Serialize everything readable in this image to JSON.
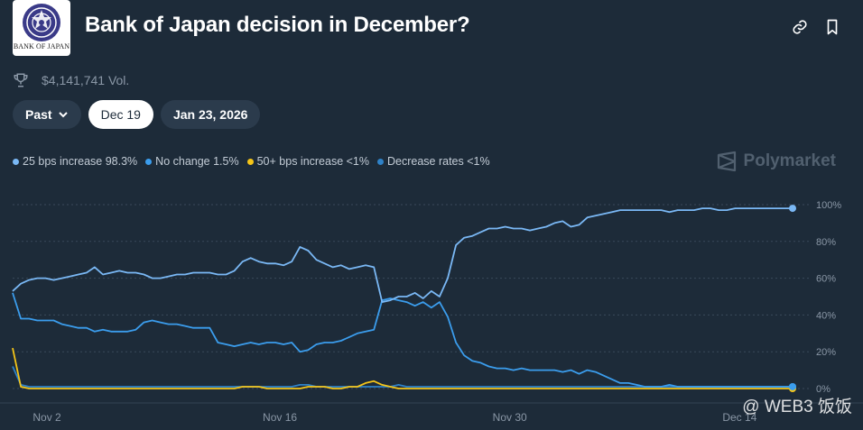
{
  "header": {
    "logo_text": "BANK OF JAPAN",
    "title": "Bank of Japan decision in December?",
    "volume": "$4,141,741 Vol."
  },
  "date_tabs": {
    "past_label": "Past",
    "dec19_label": "Dec 19",
    "jan23_label": "Jan 23, 2026"
  },
  "legend": [
    {
      "label": "25 bps increase 98.3%",
      "color": "#7ab8f5"
    },
    {
      "label": "No change 1.5%",
      "color": "#3b9ded"
    },
    {
      "label": "50+ bps increase <1%",
      "color": "#f5c518"
    },
    {
      "label": "Decrease rates <1%",
      "color": "#2f82c8"
    }
  ],
  "brand": "Polymarket",
  "watermark": "@ WEB3 饭饭",
  "chart_data": {
    "type": "line",
    "x_ticks": [
      "Nov 2",
      "Nov 16",
      "Nov 30",
      "Dec 14"
    ],
    "y_ticks": [
      "0%",
      "20%",
      "40%",
      "60%",
      "80%",
      "100%"
    ],
    "ylim": [
      0,
      100
    ],
    "grid": true,
    "legend_position": "top-left",
    "series": [
      {
        "name": "25 bps increase",
        "color": "#7ab8f5",
        "x": [
          0,
          0.5,
          1,
          1.5,
          2,
          2.5,
          3,
          3.5,
          4,
          4.5,
          5,
          5.5,
          6,
          6.5,
          7,
          7.5,
          8,
          8.5,
          9,
          9.5,
          10,
          10.5,
          11,
          11.5,
          12,
          12.5,
          13,
          13.5,
          14,
          14.5,
          15,
          15.5,
          16,
          16.5,
          17,
          17.5,
          18,
          18.5,
          19,
          19.5,
          20,
          20.5,
          21,
          21.5,
          22,
          22.5,
          23,
          23.5,
          24,
          24.5,
          25,
          25.5,
          26,
          26.5,
          27,
          27.5,
          28,
          28.5,
          29,
          29.5,
          30,
          30.5,
          31,
          31.5,
          32,
          32.5,
          33,
          33.5,
          34,
          34.5,
          35,
          35.5,
          36,
          36.5,
          37,
          37.5,
          38,
          38.5,
          39,
          39.5,
          40,
          40.5,
          41,
          41.5,
          42,
          42.5,
          43,
          43.5,
          44,
          44.5,
          45,
          45.5,
          46,
          46.5,
          47,
          47.5
        ],
        "values": [
          53,
          57,
          59,
          60,
          60,
          59,
          60,
          61,
          62,
          63,
          66,
          62,
          63,
          64,
          63,
          63,
          62,
          60,
          60,
          61,
          62,
          62,
          63,
          63,
          63,
          62,
          62,
          64,
          69,
          71,
          69,
          68,
          68,
          67,
          69,
          77,
          75,
          70,
          68,
          66,
          67,
          65,
          66,
          67,
          66,
          47,
          48,
          50,
          50,
          52,
          49,
          53,
          50,
          60,
          78,
          82,
          83,
          85,
          87,
          87,
          88,
          87,
          87,
          86,
          87,
          88,
          90,
          91,
          88,
          89,
          93,
          94,
          95,
          96,
          97,
          97,
          97,
          97,
          97,
          97,
          96,
          97,
          97,
          97,
          98,
          98,
          97,
          97,
          98,
          98,
          98,
          98,
          98,
          98,
          98,
          98
        ]
      },
      {
        "name": "No change",
        "color": "#3b9ded",
        "x": [
          0,
          0.5,
          1,
          1.5,
          2,
          2.5,
          3,
          3.5,
          4,
          4.5,
          5,
          5.5,
          6,
          6.5,
          7,
          7.5,
          8,
          8.5,
          9,
          9.5,
          10,
          10.5,
          11,
          11.5,
          12,
          12.5,
          13,
          13.5,
          14,
          14.5,
          15,
          15.5,
          16,
          16.5,
          17,
          17.5,
          18,
          18.5,
          19,
          19.5,
          20,
          20.5,
          21,
          21.5,
          22,
          22.5,
          23,
          23.5,
          24,
          24.5,
          25,
          25.5,
          26,
          26.5,
          27,
          27.5,
          28,
          28.5,
          29,
          29.5,
          30,
          30.5,
          31,
          31.5,
          32,
          32.5,
          33,
          33.5,
          34,
          34.5,
          35,
          35.5,
          36,
          36.5,
          37,
          37.5,
          38,
          38.5,
          39,
          39.5,
          40,
          40.5,
          41,
          41.5,
          42,
          42.5,
          43,
          43.5,
          44,
          44.5,
          45,
          45.5,
          46,
          46.5,
          47,
          47.5
        ],
        "values": [
          52,
          38,
          38,
          37,
          37,
          37,
          35,
          34,
          33,
          33,
          31,
          32,
          31,
          31,
          31,
          32,
          36,
          37,
          36,
          35,
          35,
          34,
          33,
          33,
          33,
          25,
          24,
          23,
          24,
          25,
          24,
          25,
          25,
          24,
          25,
          20,
          21,
          24,
          25,
          25,
          26,
          28,
          30,
          31,
          32,
          48,
          49,
          48,
          47,
          45,
          47,
          44,
          47,
          39,
          25,
          18,
          15,
          14,
          12,
          11,
          11,
          10,
          11,
          10,
          10,
          10,
          10,
          9,
          10,
          8,
          10,
          9,
          7,
          5,
          3,
          3,
          2,
          1,
          1,
          1,
          2,
          1,
          1,
          1,
          1,
          1,
          1,
          1,
          1,
          1,
          1,
          1,
          1,
          1,
          1,
          1
        ]
      },
      {
        "name": "50+ bps increase",
        "color": "#f5c518",
        "x": [
          0,
          0.5,
          1,
          1.5,
          2,
          2.5,
          3,
          3.5,
          4,
          4.5,
          5,
          5.5,
          6,
          6.5,
          7,
          7.5,
          8,
          8.5,
          9,
          9.5,
          10,
          10.5,
          11,
          11.5,
          12,
          12.5,
          13,
          13.5,
          14,
          14.5,
          15,
          15.5,
          16,
          16.5,
          17,
          17.5,
          18,
          18.5,
          19,
          19.5,
          20,
          20.5,
          21,
          21.5,
          22,
          22.5,
          23,
          23.5,
          24,
          24.5,
          25,
          25.5,
          26,
          26.5,
          27,
          27.5,
          28,
          28.5,
          29,
          29.5,
          30,
          30.5,
          31,
          31.5,
          32,
          32.5,
          33,
          33.5,
          34,
          34.5,
          35,
          35.5,
          36,
          36.5,
          37,
          37.5,
          38,
          38.5,
          39,
          39.5,
          40,
          40.5,
          41,
          41.5,
          42,
          42.5,
          43,
          43.5,
          44,
          44.5,
          45,
          45.5,
          46,
          46.5,
          47,
          47.5
        ],
        "values": [
          22,
          1,
          0,
          0,
          0,
          0,
          0,
          0,
          0,
          0,
          0,
          0,
          0,
          0,
          0,
          0,
          0,
          0,
          0,
          0,
          0,
          0,
          0,
          0,
          0,
          0,
          0,
          0,
          1,
          1,
          1,
          0,
          0,
          0,
          0,
          0,
          1,
          1,
          1,
          0,
          0,
          1,
          1,
          3,
          4,
          2,
          1,
          0,
          0,
          0,
          0,
          0,
          0,
          0,
          0,
          0,
          0,
          0,
          0,
          0,
          0,
          0,
          0,
          0,
          0,
          0,
          0,
          0,
          0,
          0,
          0,
          0,
          0,
          0,
          0,
          0,
          0,
          0,
          0,
          0,
          0,
          0,
          0,
          0,
          0,
          0,
          0,
          0,
          0,
          0,
          0,
          0,
          0,
          0,
          0,
          0
        ]
      },
      {
        "name": "Decrease rates",
        "color": "#2f82c8",
        "x": [
          0,
          0.5,
          1,
          1.5,
          2,
          2.5,
          3,
          3.5,
          4,
          4.5,
          5,
          5.5,
          6,
          6.5,
          7,
          7.5,
          8,
          8.5,
          9,
          9.5,
          10,
          10.5,
          11,
          11.5,
          12,
          12.5,
          13,
          13.5,
          14,
          14.5,
          15,
          15.5,
          16,
          16.5,
          17,
          17.5,
          18,
          18.5,
          19,
          19.5,
          20,
          20.5,
          21,
          21.5,
          22,
          22.5,
          23,
          23.5,
          24,
          24.5,
          25,
          25.5,
          26,
          26.5,
          27,
          27.5,
          28,
          28.5,
          29,
          29.5,
          30,
          30.5,
          31,
          31.5,
          32,
          32.5,
          33,
          33.5,
          34,
          34.5,
          35,
          35.5,
          36,
          36.5,
          37,
          37.5,
          38,
          38.5,
          39,
          39.5,
          40,
          40.5,
          41,
          41.5,
          42,
          42.5,
          43,
          43.5,
          44,
          44.5,
          45,
          45.5,
          46,
          46.5,
          47,
          47.5
        ],
        "values": [
          12,
          2,
          1,
          1,
          1,
          1,
          1,
          1,
          1,
          1,
          1,
          1,
          1,
          1,
          1,
          1,
          1,
          1,
          1,
          1,
          1,
          1,
          1,
          1,
          1,
          1,
          1,
          1,
          1,
          1,
          1,
          1,
          1,
          1,
          1,
          2,
          2,
          1,
          1,
          1,
          1,
          1,
          1,
          1,
          1,
          1,
          1,
          2,
          1,
          1,
          1,
          1,
          1,
          1,
          1,
          1,
          1,
          1,
          1,
          1,
          1,
          1,
          1,
          1,
          1,
          1,
          1,
          1,
          1,
          1,
          1,
          1,
          1,
          1,
          1,
          1,
          1,
          1,
          1,
          1,
          1,
          1,
          1,
          1,
          1,
          1,
          1,
          1,
          1,
          1,
          1,
          1,
          1,
          1,
          1,
          1
        ]
      }
    ]
  }
}
